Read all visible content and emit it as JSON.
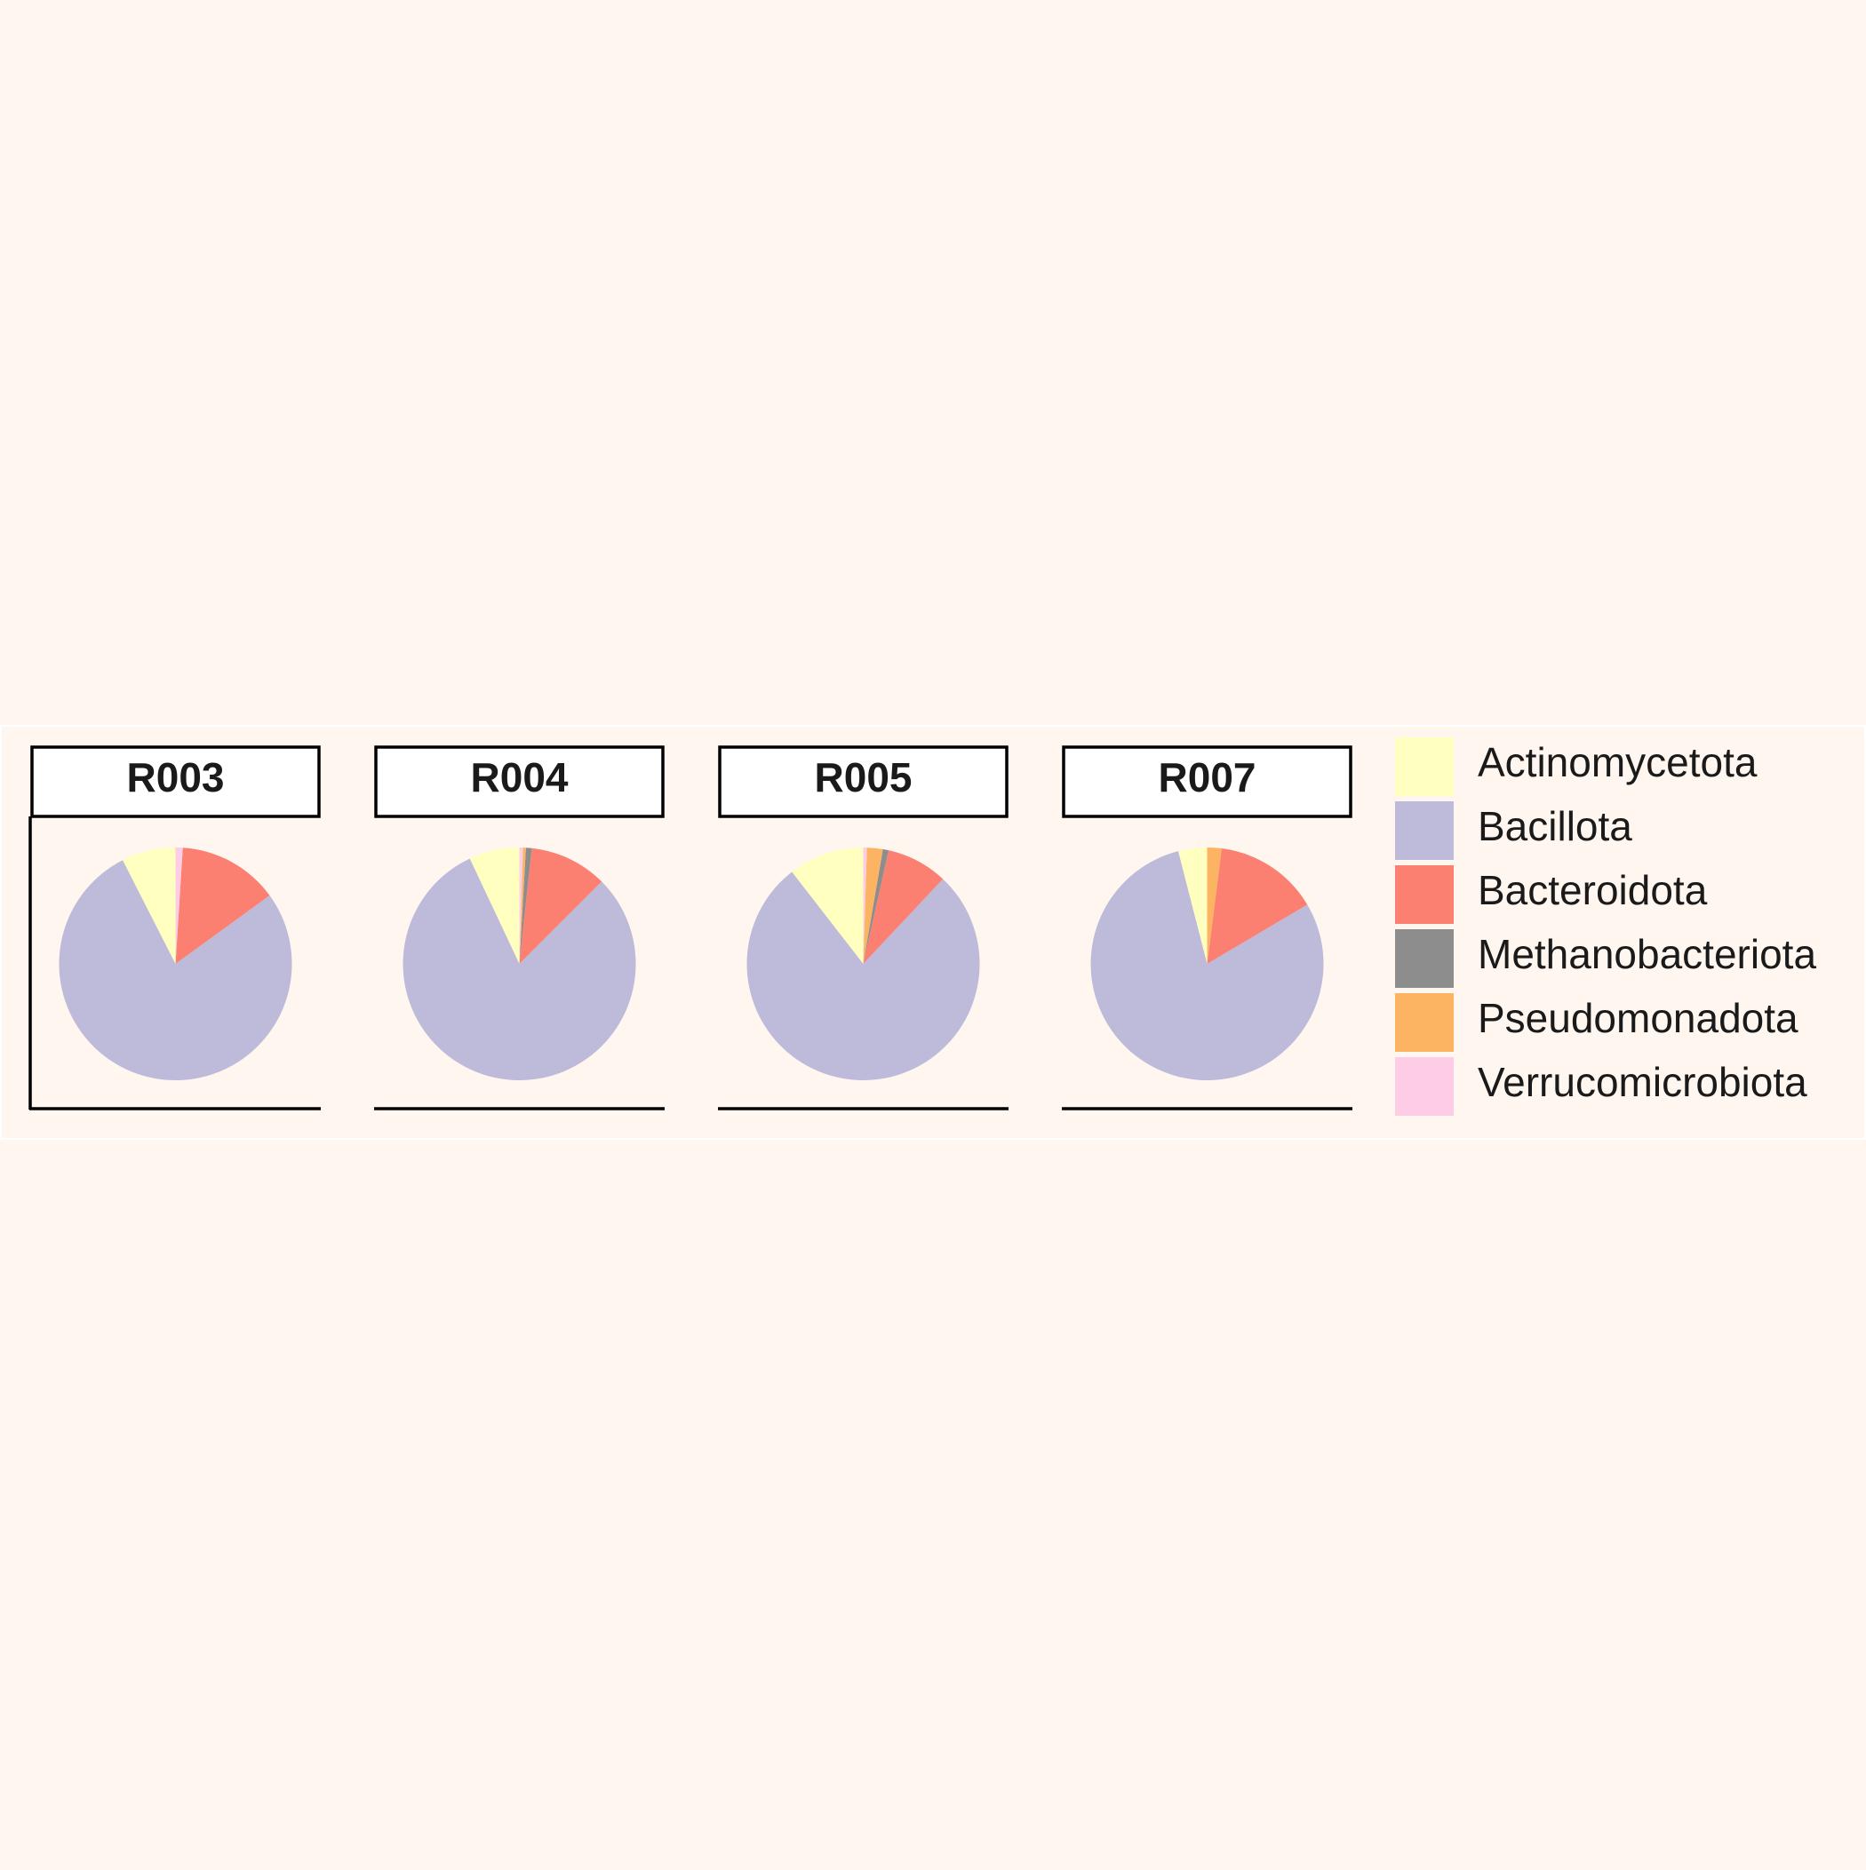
{
  "chart_data": {
    "type": "pie",
    "facets": [
      {
        "label": "R003",
        "values": [
          7.5,
          77.5,
          14.0,
          0.0,
          0.0,
          1.0
        ]
      },
      {
        "label": "R004",
        "values": [
          7.0,
          80.5,
          10.8,
          0.8,
          0.4,
          0.5
        ]
      },
      {
        "label": "R005",
        "values": [
          10.5,
          77.5,
          8.5,
          0.8,
          2.2,
          0.5
        ]
      },
      {
        "label": "R007",
        "values": [
          4.0,
          79.5,
          14.5,
          0.0,
          2.0,
          0.0
        ]
      }
    ],
    "legend": {
      "position": "right",
      "entries": [
        {
          "name": "Actinomycetota",
          "color": "#ffffbf"
        },
        {
          "name": "Bacillota",
          "color": "#bebada"
        },
        {
          "name": "Bacteroidota",
          "color": "#fb8072"
        },
        {
          "name": "Methanobacteriota",
          "color": "#8d8d8d"
        },
        {
          "name": "Pseudomonadota",
          "color": "#fdb462"
        },
        {
          "name": "Verrucomicrobiota",
          "color": "#fccde5"
        }
      ]
    },
    "background": "#fff6f0",
    "panel_background": "#fff6f0",
    "strip_fill": "#ffffff"
  }
}
